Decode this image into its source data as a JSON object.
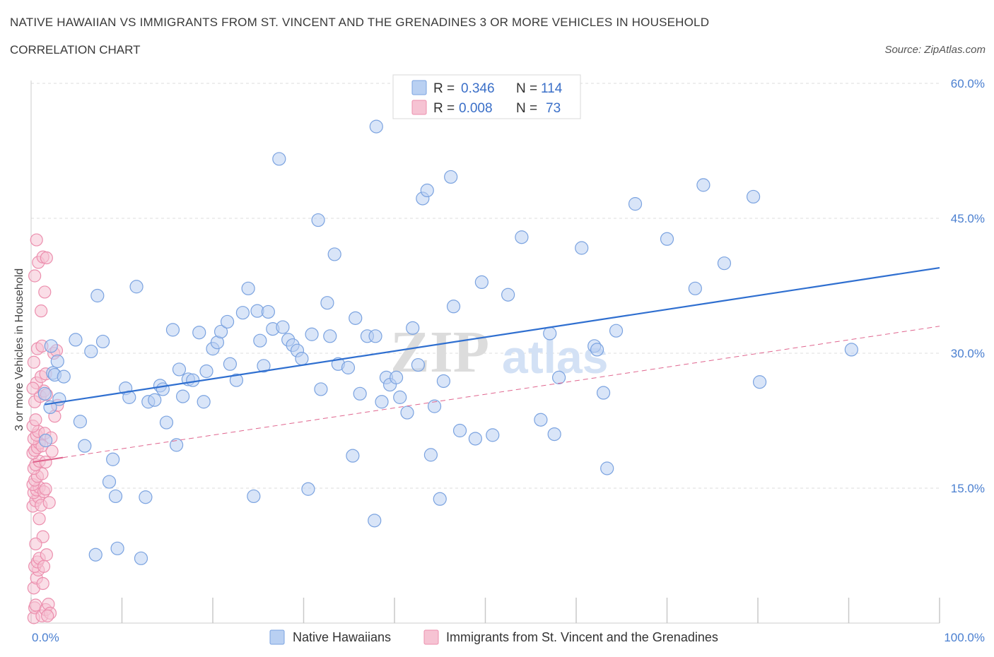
{
  "header": {
    "title": "NATIVE HAWAIIAN VS IMMIGRANTS FROM ST. VINCENT AND THE GRENADINES 3 OR MORE VEHICLES IN HOUSEHOLD",
    "subtitle": "CORRELATION CHART",
    "source": "Source: ZipAtlas.com"
  },
  "watermark": {
    "zip": "ZIP",
    "atlas": "atlas"
  },
  "colors": {
    "blue_fill": "#b9d0f2",
    "blue_stroke": "#7ba3e0",
    "blue_line": "#2f6fd0",
    "pink_fill": "#f6c3d3",
    "pink_stroke": "#ec8fae",
    "pink_line": "#e0668f",
    "grid": "#dcdcdc",
    "axis_text": "#4a7fd0"
  },
  "legend": {
    "rows": [
      {
        "r_label": "R =",
        "r_value": "0.346",
        "n_label": "N =",
        "n_value": "114"
      },
      {
        "r_label": "R =",
        "r_value": "0.008",
        "n_label": "N =",
        "n_value": "73"
      }
    ]
  },
  "chart_data": {
    "type": "scatter",
    "xlabel": "",
    "ylabel": "3 or more Vehicles in Household",
    "xlim": [
      0,
      100
    ],
    "ylim": [
      0,
      60
    ],
    "x_tick_labels": [
      "0.0%",
      "100.0%"
    ],
    "y_ticks": [
      15,
      30,
      45,
      60
    ],
    "y_tick_labels": [
      "15.0%",
      "30.0%",
      "45.0%",
      "60.0%"
    ],
    "grid": true,
    "legend_position": "bottom",
    "series": [
      {
        "name": "Native Hawaiians",
        "trend": {
          "x0": 1.5,
          "y0": 24.3,
          "x1": 100,
          "y1": 39.5,
          "style": "solid"
        },
        "points": [
          [
            1.5,
            25.5
          ],
          [
            1.6,
            20.3
          ],
          [
            2.1,
            24.0
          ],
          [
            2.2,
            30.8
          ],
          [
            2.4,
            27.8
          ],
          [
            2.6,
            27.6
          ],
          [
            2.9,
            29.1
          ],
          [
            3.1,
            24.9
          ],
          [
            3.6,
            27.4
          ],
          [
            4.9,
            31.5
          ],
          [
            5.4,
            22.4
          ],
          [
            5.9,
            19.7
          ],
          [
            6.6,
            30.2
          ],
          [
            7.1,
            7.6
          ],
          [
            7.3,
            36.4
          ],
          [
            7.9,
            31.3
          ],
          [
            8.6,
            15.7
          ],
          [
            9.0,
            18.2
          ],
          [
            9.3,
            14.1
          ],
          [
            9.5,
            8.3
          ],
          [
            10.4,
            26.1
          ],
          [
            10.8,
            25.1
          ],
          [
            11.6,
            37.4
          ],
          [
            12.1,
            7.2
          ],
          [
            12.6,
            14.0
          ],
          [
            12.9,
            24.6
          ],
          [
            13.6,
            24.8
          ],
          [
            14.2,
            26.4
          ],
          [
            14.5,
            26.0
          ],
          [
            14.9,
            22.3
          ],
          [
            15.6,
            32.6
          ],
          [
            16.0,
            19.8
          ],
          [
            16.3,
            28.2
          ],
          [
            16.7,
            25.2
          ],
          [
            17.3,
            27.1
          ],
          [
            17.8,
            27.0
          ],
          [
            18.5,
            32.3
          ],
          [
            19.0,
            24.6
          ],
          [
            19.3,
            28.0
          ],
          [
            20.0,
            30.5
          ],
          [
            20.5,
            31.2
          ],
          [
            20.9,
            32.4
          ],
          [
            21.6,
            33.5
          ],
          [
            21.9,
            28.8
          ],
          [
            22.6,
            27.0
          ],
          [
            23.3,
            34.5
          ],
          [
            23.9,
            37.2
          ],
          [
            24.5,
            14.1
          ],
          [
            24.9,
            34.7
          ],
          [
            25.2,
            31.4
          ],
          [
            25.6,
            28.6
          ],
          [
            26.1,
            34.6
          ],
          [
            26.6,
            32.7
          ],
          [
            27.3,
            51.6
          ],
          [
            27.7,
            32.9
          ],
          [
            28.3,
            31.5
          ],
          [
            28.8,
            30.9
          ],
          [
            29.3,
            30.3
          ],
          [
            29.8,
            29.4
          ],
          [
            30.5,
            14.9
          ],
          [
            30.9,
            32.1
          ],
          [
            31.6,
            44.8
          ],
          [
            31.9,
            26.0
          ],
          [
            32.6,
            35.6
          ],
          [
            32.9,
            31.9
          ],
          [
            33.4,
            41.0
          ],
          [
            33.8,
            28.8
          ],
          [
            34.9,
            28.4
          ],
          [
            35.4,
            18.6
          ],
          [
            35.7,
            33.9
          ],
          [
            36.2,
            25.5
          ],
          [
            37.0,
            31.9
          ],
          [
            37.8,
            11.4
          ],
          [
            37.9,
            31.9
          ],
          [
            38.0,
            55.2
          ],
          [
            38.6,
            24.6
          ],
          [
            39.1,
            27.3
          ],
          [
            39.5,
            26.5
          ],
          [
            40.2,
            27.3
          ],
          [
            40.6,
            25.1
          ],
          [
            41.4,
            23.4
          ],
          [
            42.0,
            32.8
          ],
          [
            42.6,
            28.7
          ],
          [
            43.1,
            47.2
          ],
          [
            43.6,
            48.1
          ],
          [
            44.0,
            18.7
          ],
          [
            44.4,
            24.1
          ],
          [
            45.0,
            13.8
          ],
          [
            45.4,
            26.9
          ],
          [
            46.2,
            49.6
          ],
          [
            46.5,
            35.2
          ],
          [
            47.2,
            21.4
          ],
          [
            48.9,
            20.5
          ],
          [
            49.6,
            37.9
          ],
          [
            50.8,
            20.9
          ],
          [
            52.5,
            36.5
          ],
          [
            54.0,
            42.9
          ],
          [
            56.1,
            22.6
          ],
          [
            57.1,
            32.2
          ],
          [
            57.6,
            21.0
          ],
          [
            58.1,
            27.3
          ],
          [
            60.6,
            41.7
          ],
          [
            62.0,
            30.8
          ],
          [
            62.3,
            30.4
          ],
          [
            63.0,
            25.6
          ],
          [
            63.4,
            17.2
          ],
          [
            64.4,
            32.5
          ],
          [
            66.5,
            46.6
          ],
          [
            70.0,
            42.7
          ],
          [
            73.1,
            37.2
          ],
          [
            74.0,
            48.7
          ],
          [
            76.3,
            40.0
          ],
          [
            79.5,
            47.4
          ],
          [
            80.2,
            26.8
          ],
          [
            90.3,
            30.4
          ]
        ]
      },
      {
        "name": "Immigrants from St. Vincent and the Grenadines",
        "trend_solid": {
          "x0": 0.2,
          "y0": 17.9,
          "x1": 3.5,
          "y1": 18.4
        },
        "trend": {
          "x0": 3.5,
          "y0": 18.4,
          "x1": 100,
          "y1": 33.0,
          "style": "dashed"
        },
        "points": [
          [
            0.3,
            0.6
          ],
          [
            0.4,
            1.7
          ],
          [
            0.5,
            2.0
          ],
          [
            0.3,
            3.9
          ],
          [
            0.6,
            5.0
          ],
          [
            0.8,
            5.9
          ],
          [
            0.4,
            6.3
          ],
          [
            0.7,
            6.8
          ],
          [
            0.9,
            7.2
          ],
          [
            1.4,
            6.3
          ],
          [
            1.7,
            7.6
          ],
          [
            1.3,
            4.4
          ],
          [
            1.2,
            0.8
          ],
          [
            1.6,
            1.5
          ],
          [
            1.9,
            2.1
          ],
          [
            2.1,
            1.1
          ],
          [
            1.8,
            0.8
          ],
          [
            0.2,
            13.0
          ],
          [
            0.5,
            13.6
          ],
          [
            0.8,
            14.0
          ],
          [
            1.1,
            13.1
          ],
          [
            0.3,
            14.5
          ],
          [
            0.6,
            14.8
          ],
          [
            0.9,
            15.1
          ],
          [
            1.4,
            14.6
          ],
          [
            1.6,
            14.9
          ],
          [
            0.2,
            15.4
          ],
          [
            0.4,
            15.9
          ],
          [
            0.7,
            16.3
          ],
          [
            1.2,
            16.6
          ],
          [
            0.3,
            17.2
          ],
          [
            0.5,
            17.6
          ],
          [
            0.9,
            18.0
          ],
          [
            1.6,
            17.9
          ],
          [
            0.2,
            18.9
          ],
          [
            0.4,
            19.2
          ],
          [
            0.7,
            19.5
          ],
          [
            0.9,
            20.0
          ],
          [
            1.2,
            19.7
          ],
          [
            0.3,
            20.5
          ],
          [
            0.6,
            20.9
          ],
          [
            0.8,
            21.3
          ],
          [
            1.5,
            21.1
          ],
          [
            0.2,
            21.9
          ],
          [
            0.5,
            22.6
          ],
          [
            2.6,
            23.0
          ],
          [
            2.9,
            24.2
          ],
          [
            0.4,
            24.6
          ],
          [
            1.0,
            25.2
          ],
          [
            1.4,
            25.8
          ],
          [
            1.7,
            25.4
          ],
          [
            0.6,
            26.7
          ],
          [
            1.1,
            27.4
          ],
          [
            1.6,
            27.7
          ],
          [
            0.3,
            29.0
          ],
          [
            0.7,
            30.5
          ],
          [
            1.2,
            30.8
          ],
          [
            2.5,
            30.0
          ],
          [
            2.8,
            30.3
          ],
          [
            1.1,
            34.7
          ],
          [
            1.5,
            36.8
          ],
          [
            0.4,
            38.6
          ],
          [
            0.8,
            40.1
          ],
          [
            1.3,
            40.7
          ],
          [
            1.7,
            40.6
          ],
          [
            0.6,
            42.6
          ],
          [
            2.2,
            20.6
          ],
          [
            2.0,
            13.4
          ],
          [
            0.9,
            11.6
          ],
          [
            1.3,
            9.6
          ],
          [
            0.5,
            8.8
          ],
          [
            2.3,
            19.1
          ],
          [
            0.2,
            26.1
          ]
        ]
      }
    ]
  }
}
